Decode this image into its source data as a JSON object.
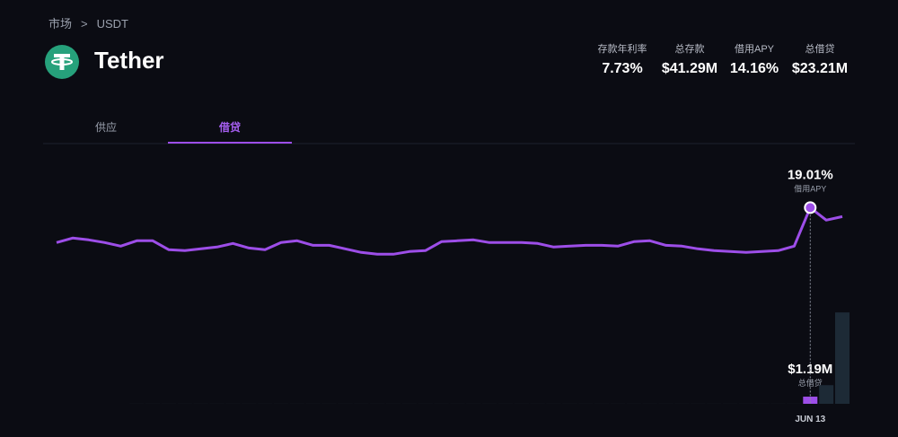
{
  "header": {
    "breadcrumb": [
      "市场",
      "USDT"
    ],
    "title": "Tether",
    "stats": [
      {
        "label": "存款年利率",
        "value": "7.73%"
      },
      {
        "label": "总存款",
        "value": "$41.29M"
      },
      {
        "label": "借用APY",
        "value": "14.16%"
      },
      {
        "label": "总借贷",
        "value": "$23.21M"
      }
    ]
  },
  "tabs": [
    "供应",
    "借贷"
  ],
  "chart_data": {
    "type": "combo",
    "categories": [
      null,
      null,
      null,
      null,
      null,
      null,
      null,
      null,
      null,
      null,
      null,
      null,
      null,
      null,
      null,
      null,
      null,
      null,
      null,
      null,
      null,
      null,
      null,
      null,
      null,
      null,
      null,
      null,
      null,
      null,
      null,
      null,
      null,
      null,
      null,
      null,
      null,
      null,
      null,
      null,
      null,
      null,
      null,
      null,
      null,
      null,
      null,
      "JUN 13",
      null,
      null
    ],
    "series": [
      {
        "name": "借用APY",
        "type": "line",
        "color": "#9d4ee8",
        "values": [
          15.63,
          16.06,
          15.89,
          15.63,
          15.28,
          15.8,
          15.8,
          14.93,
          14.84,
          15.02,
          15.19,
          15.54,
          15.1,
          14.93,
          15.63,
          15.8,
          15.36,
          15.36,
          15.02,
          14.67,
          14.5,
          14.5,
          14.76,
          14.84,
          15.71,
          15.8,
          15.89,
          15.63,
          15.63,
          15.63,
          15.54,
          15.19,
          15.28,
          15.36,
          15.36,
          15.28,
          15.71,
          15.8,
          15.36,
          15.28,
          15.02,
          14.84,
          14.76,
          14.67,
          14.76,
          14.84,
          15.28,
          19.01,
          17.8,
          18.14
        ],
        "value_labels": [
          null,
          null,
          null,
          null,
          null,
          null,
          null,
          null,
          null,
          null,
          null,
          null,
          null,
          null,
          null,
          null,
          null,
          null,
          null,
          null,
          null,
          null,
          null,
          null,
          null,
          null,
          null,
          null,
          null,
          null,
          null,
          null,
          null,
          null,
          null,
          null,
          null,
          null,
          null,
          null,
          null,
          null,
          null,
          null,
          null,
          null,
          null,
          "19.01%",
          null,
          null
        ]
      },
      {
        "name": "总借贷",
        "type": "bar",
        "axis": "y2",
        "color": "#1d2a36",
        "highlight_color": "#9d4ee8",
        "values": [
          0,
          0,
          0,
          0,
          0,
          20000,
          20000,
          20000,
          20000,
          20000,
          20000,
          20000,
          20000,
          20000,
          20000,
          20000,
          20000,
          20000,
          20000,
          20000,
          20000,
          20000,
          20000,
          20000,
          20000,
          20000,
          20000,
          20000,
          20000,
          20000,
          20000,
          20000,
          20000,
          20000,
          20000,
          20000,
          20000,
          20000,
          20000,
          20000,
          20000,
          20000,
          20000,
          20000,
          20000,
          20000,
          20000,
          1190000,
          3100000,
          15200000
        ],
        "value_labels": [
          null,
          null,
          null,
          null,
          null,
          null,
          null,
          null,
          null,
          null,
          null,
          null,
          null,
          null,
          null,
          null,
          null,
          null,
          null,
          null,
          null,
          null,
          null,
          null,
          null,
          null,
          null,
          null,
          null,
          null,
          null,
          null,
          null,
          null,
          null,
          null,
          null,
          null,
          null,
          null,
          null,
          null,
          null,
          null,
          null,
          null,
          null,
          "$1.19M",
          null,
          null
        ]
      }
    ],
    "ylim": [
      0,
      20
    ],
    "y2lim": [
      0,
      20000000
    ]
  }
}
